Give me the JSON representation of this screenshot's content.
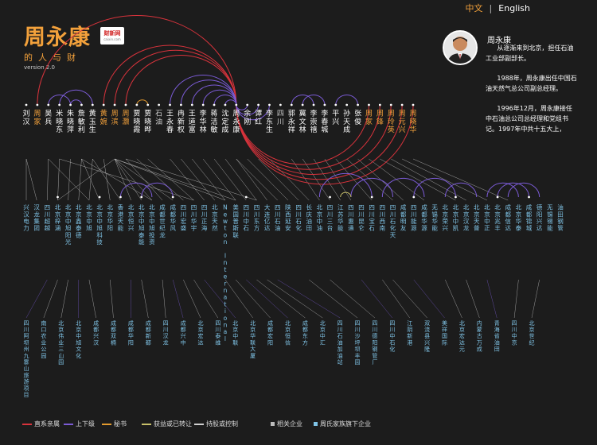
{
  "nav": {
    "zh": "中文",
    "sep": "|",
    "en": "English"
  },
  "brand": {
    "title": "周永康",
    "subtitle": "的人与财",
    "version": "version 2.0",
    "logo_main": "财新网",
    "logo_sub": "caixin.com"
  },
  "profile": {
    "name": "周永康",
    "bio": [
      "从逐渐来到北京，担任石油工业部副部长。",
      "1988年，周永康出任中国石油天然气总公司副总经理。",
      "1996年12月，周永康接任中石油总公司总经理和党组书记。1997年中共十五大上，"
    ]
  },
  "colors": {
    "direct": "#d9333c",
    "superior": "#7b5bd6",
    "secretary": "#e39a2e",
    "benefit": "#c8c06a",
    "holding": "#d0d0d0",
    "person": "#ffffff",
    "family": "#f3a13b",
    "enterprise": "#7fc3e6"
  },
  "legend": [
    {
      "label": "直系亲属",
      "kind": "line",
      "color": "#d9333c"
    },
    {
      "label": "上下级",
      "kind": "line",
      "color": "#7b5bd6"
    },
    {
      "label": "秘书",
      "kind": "line",
      "color": "#e39a2e"
    },
    {
      "label": "获益或已转让",
      "kind": "line",
      "color": "#c8c06a"
    },
    {
      "label": "持股或控制",
      "kind": "line",
      "color": "#d0d0d0"
    },
    {
      "label": "相关企业",
      "kind": "square",
      "color": "#bbbbbb"
    },
    {
      "label": "周氏家族旗下企业",
      "kind": "square",
      "color": "#7fc3e6"
    }
  ],
  "chart_data": {
    "type": "network",
    "people": [
      {
        "name": "刘汉",
        "group": "related"
      },
      {
        "name": "周家",
        "group": "family"
      },
      {
        "name": "吴兵",
        "group": "related"
      },
      {
        "name": "米晓东",
        "group": "related"
      },
      {
        "name": "朱晓萍",
        "group": "related"
      },
      {
        "name": "詹敏利",
        "group": "related"
      },
      {
        "name": "黄玉生",
        "group": "related"
      },
      {
        "name": "黄婉",
        "group": "family"
      },
      {
        "name": "周滨",
        "group": "family"
      },
      {
        "name": "周灏",
        "group": "family"
      },
      {
        "name": "贾晓霞",
        "group": "related"
      },
      {
        "name": "贾晓晔",
        "group": "related"
      },
      {
        "name": "石油",
        "group": "label"
      },
      {
        "name": "王永春",
        "group": "related"
      },
      {
        "name": "冉新权",
        "group": "related"
      },
      {
        "name": "王道富",
        "group": "related"
      },
      {
        "name": "李华林",
        "group": "related"
      },
      {
        "name": "蒋洁敏",
        "group": "related"
      },
      {
        "name": "沈定成",
        "group": "related"
      },
      {
        "name": "周永康",
        "group": "center"
      },
      {
        "name": "余刚",
        "group": "related"
      },
      {
        "name": "谭红",
        "group": "related"
      },
      {
        "name": "李东生",
        "group": "related"
      },
      {
        "name": "四川",
        "group": "label"
      },
      {
        "name": "郭永祥",
        "group": "related"
      },
      {
        "name": "冀文林",
        "group": "related"
      },
      {
        "name": "李崇禧",
        "group": "related"
      },
      {
        "name": "李春城",
        "group": "related"
      },
      {
        "name": "平兴",
        "group": "related"
      },
      {
        "name": "孙天成",
        "group": "related"
      },
      {
        "name": "张俊",
        "group": "related"
      },
      {
        "name": "周家",
        "group": "family"
      },
      {
        "name": "周锋",
        "group": "family"
      },
      {
        "name": "周玲英",
        "group": "family"
      },
      {
        "name": "周元兴",
        "group": "family"
      },
      {
        "name": "周晓华",
        "group": "family"
      }
    ],
    "companies_mid": [
      "兴汉电力",
      "汉龙集团",
      "四川超越",
      "北京梓涵",
      "北京中旭阳光",
      "北京鑫泰德",
      "北京中旭",
      "北京中旭科技",
      "北京华阳",
      "香港天能",
      "北京恒兴",
      "北京中旭泰能",
      "北京中旭投资",
      "成都世纪龙",
      "成都华风",
      "四川宏盛",
      "四川华宇",
      "四川正海",
      "北京天然",
      "Newton International",
      "美国普斯联",
      "四川中石",
      "四川东方",
      "大连亿达",
      "四川石油",
      "陕西延安",
      "四川石化",
      "长庆油田",
      "北京中油",
      "四川三台",
      "江苏华能",
      "四川惠通",
      "四川昆仑",
      "四川宝石",
      "四川西南",
      "四川石化天",
      "成都明友",
      "四川能源",
      "成都华源",
      "无锡华能",
      "北京荣兴",
      "北京中凯",
      "北京汉龙",
      "北京天普",
      "北京中正",
      "北京兆丰",
      "成都信达",
      "北京华泰",
      "成都锦城",
      "德阳兴达",
      "无锡锡能",
      "油田钢管"
    ],
    "companies_bottom": [
      "四川阿坝州九寨山旅游项目",
      "南口农业公园",
      "北京伟业三山园",
      "北京中旭文化",
      "成都兴汉",
      "成都双楠",
      "成都华阳",
      "成都新都",
      "四川汉龙",
      "成都兴中",
      "北京宏达",
      "四川泰维",
      "北京中联",
      "北京华联大厦",
      "成都宏阳",
      "北京恒信",
      "成都东方",
      "北京中汇",
      "四川石油加油站",
      "四川沙坪坝丰园",
      "四川德阳钢管厂",
      "四川中石化",
      "江阴新港",
      "双流县兴隆",
      "美祥国际",
      "北京宏达元",
      "内蒙古万成",
      "青海省油田",
      "四川中京",
      "北京世纪"
    ]
  }
}
